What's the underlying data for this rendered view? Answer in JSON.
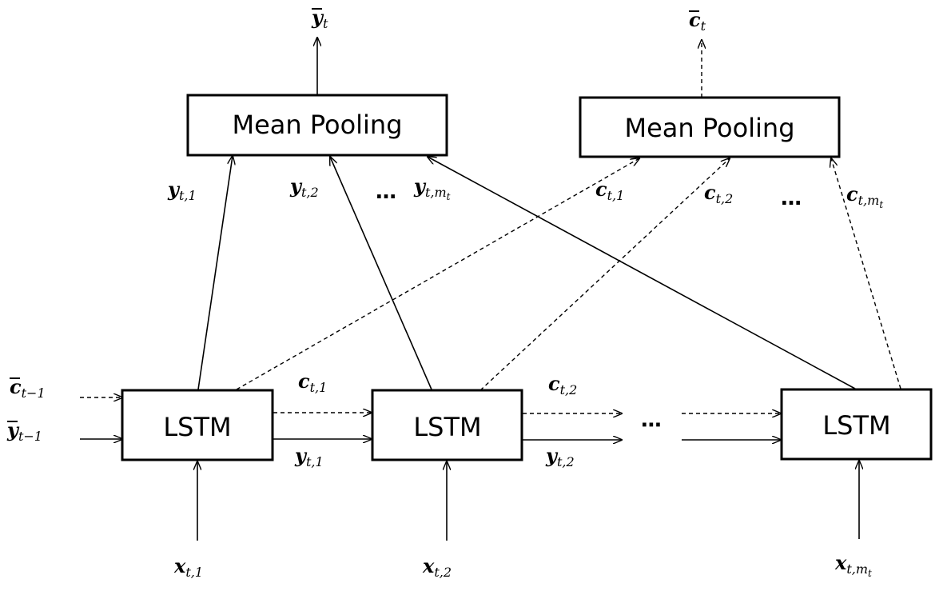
{
  "boxes": {
    "pool_y": "Mean Pooling",
    "pool_c": "Mean Pooling",
    "lstm_1": "LSTM",
    "lstm_2": "LSTM",
    "lstm_m": "LSTM"
  },
  "labels": {
    "y_bar_t": {
      "base": "y",
      "sub": "t"
    },
    "c_bar_t": {
      "base": "c",
      "sub": "t"
    },
    "c_bar_prev": {
      "base": "c",
      "sub": "t−1"
    },
    "y_bar_prev": {
      "base": "y",
      "sub": "t−1"
    },
    "y_t1_up": {
      "base": "y",
      "sub": "t,1"
    },
    "y_t2_up": {
      "base": "y",
      "sub": "t,2"
    },
    "y_tm_up": {
      "base": "y",
      "sub": "t,m",
      "subsub": "t"
    },
    "c_t1_up": {
      "base": "c",
      "sub": "t,1"
    },
    "c_t2_up": {
      "base": "c",
      "sub": "t,2"
    },
    "c_tm_up": {
      "base": "c",
      "sub": "t,m",
      "subsub": "t"
    },
    "c_t1_mid": {
      "base": "c",
      "sub": "t,1"
    },
    "y_t1_mid": {
      "base": "y",
      "sub": "t,1"
    },
    "c_t2_mid": {
      "base": "c",
      "sub": "t,2"
    },
    "y_t2_mid": {
      "base": "y",
      "sub": "t,2"
    },
    "x_t1": {
      "base": "x",
      "sub": "t,1"
    },
    "x_t2": {
      "base": "x",
      "sub": "t,2"
    },
    "x_tm": {
      "base": "x",
      "sub": "t,m",
      "subsub": "t"
    }
  },
  "ellipses": {
    "top_y": "…",
    "top_c": "…",
    "mid": "⋯"
  }
}
